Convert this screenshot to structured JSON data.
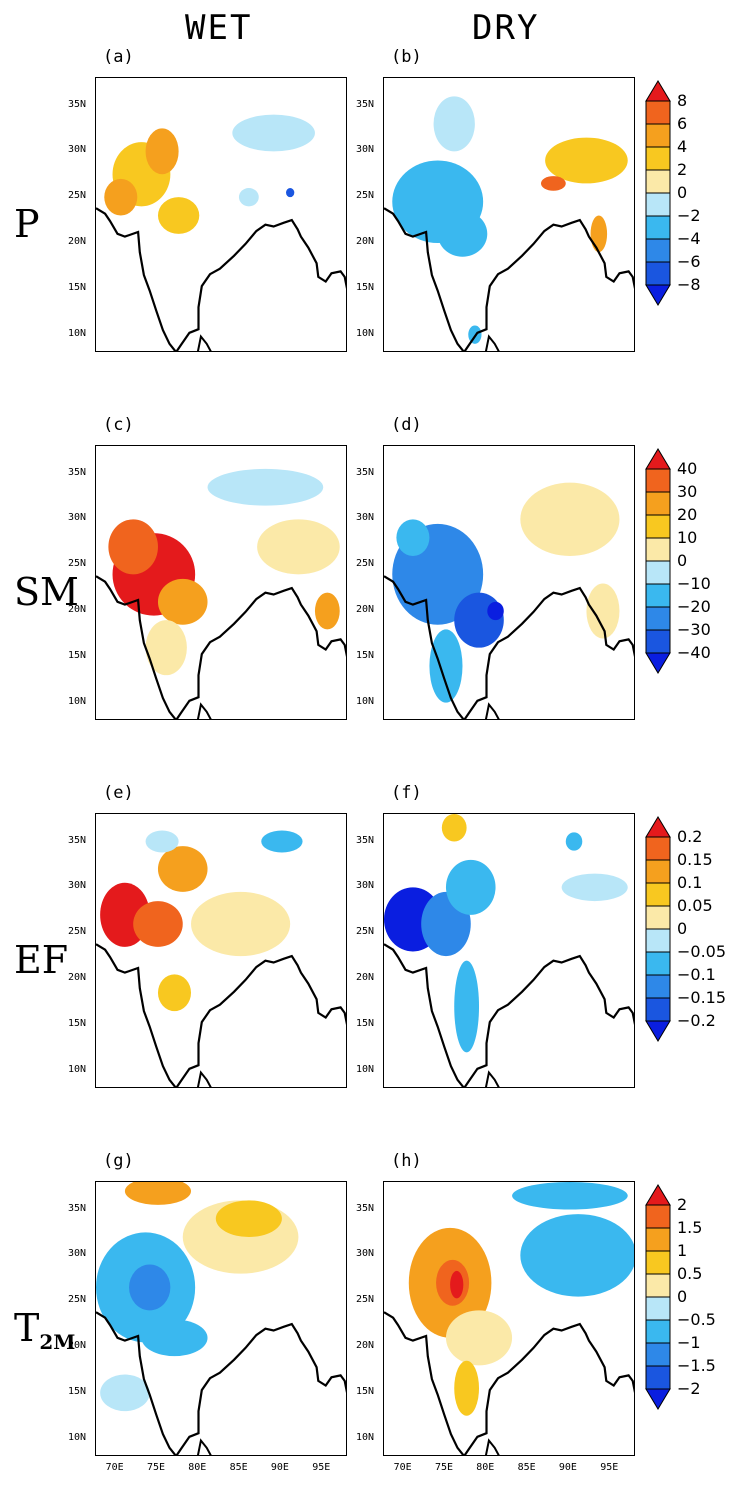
{
  "columns": [
    "WET",
    "DRY"
  ],
  "rows": [
    {
      "label": "P",
      "sub": "",
      "panels": [
        "(a)",
        "(b)"
      ],
      "colorbar": {
        "levels": [
          "8",
          "6",
          "4",
          "2",
          "0",
          "−2",
          "−4",
          "−6",
          "−8"
        ]
      }
    },
    {
      "label": "SM",
      "sub": "",
      "panels": [
        "(c)",
        "(d)"
      ],
      "colorbar": {
        "levels": [
          "40",
          "30",
          "20",
          "10",
          "0",
          "−10",
          "−20",
          "−30",
          "−40"
        ]
      }
    },
    {
      "label": "EF",
      "sub": "",
      "panels": [
        "(e)",
        "(f)"
      ],
      "colorbar": {
        "levels": [
          "0.2",
          "0.15",
          "0.1",
          "0.05",
          "0",
          "−0.05",
          "−0.1",
          "−0.15",
          "−0.2"
        ]
      }
    },
    {
      "label": "T",
      "sub": "2M",
      "panels": [
        "(g)",
        "(h)"
      ],
      "colorbar": {
        "levels": [
          "2",
          "1.5",
          "1",
          "0.5",
          "0",
          "−0.5",
          "−1",
          "−1.5",
          "−2"
        ]
      }
    }
  ],
  "lat_ticks": [
    "35N",
    "30N",
    "25N",
    "20N",
    "15N",
    "10N"
  ],
  "lon_ticks": [
    "70E",
    "75E",
    "80E",
    "85E",
    "90E",
    "95E"
  ],
  "palette": {
    "red": "#e41a1c",
    "orange_red": "#f0641e",
    "orange": "#f5a01e",
    "gold": "#f8c820",
    "cream": "#fbe9a8",
    "light_blue": "#b8e6f8",
    "sky": "#3ab8ef",
    "blue": "#2e88e8",
    "royal": "#1a56e0",
    "deep": "#0a1ee0"
  }
}
